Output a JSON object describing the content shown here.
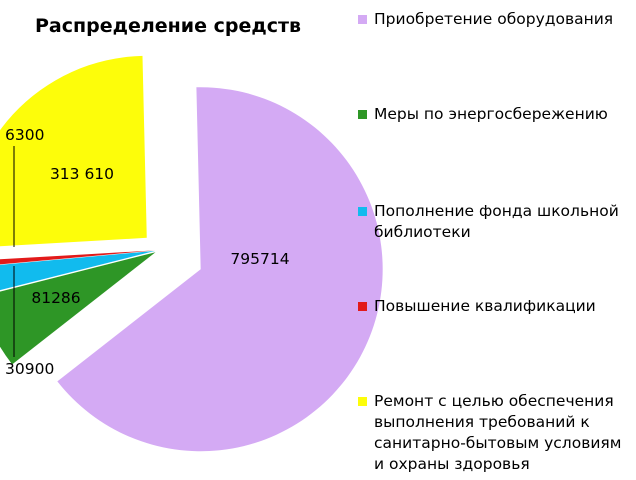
{
  "chart_data": {
    "type": "pie",
    "title": "Распределение средств",
    "slices": [
      {
        "label": "Приобретение оборудования",
        "value": 795714,
        "display": "795714",
        "color": "#d4aaf4"
      },
      {
        "label": "Меры по энергосбережению",
        "value": 81286,
        "display": "81286",
        "color": "#2e9626"
      },
      {
        "label": "Пополнение фонда школьной библиотеки",
        "value": 30900,
        "display": "30900",
        "color": "#11bbee"
      },
      {
        "label": "Повышение квалификации",
        "value": 6300,
        "display": "6300",
        "color": "#e21a1a"
      },
      {
        "label": "Ремонт с целью обеспечения выполнения требований к санитарно-бытовым условиям и охраны здоровья",
        "value": 313610,
        "display": "313 610",
        "color": "#fdfd0a"
      }
    ],
    "legend_position": "right"
  }
}
